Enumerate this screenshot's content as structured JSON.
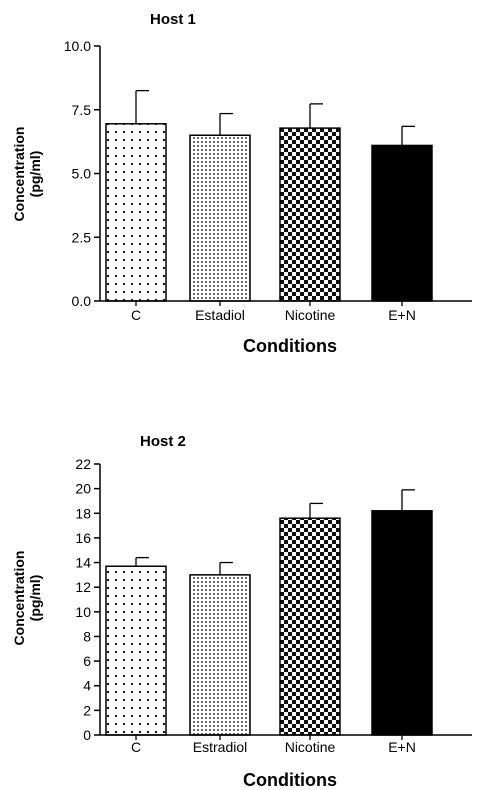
{
  "chart_data": [
    {
      "type": "bar",
      "title": "Host 1",
      "categories": [
        "C",
        "Estadiol",
        "Nicotine",
        "E+N"
      ],
      "values": [
        6.95,
        6.5,
        6.78,
        6.1
      ],
      "error": [
        1.3,
        0.85,
        0.95,
        0.75
      ],
      "xlabel": "Conditions",
      "ylabel_line1": "Concentration",
      "ylabel_line2": "(pg/ml)",
      "ylim": [
        0,
        10
      ],
      "yticks": [
        0,
        2.5,
        5,
        7.5,
        10
      ],
      "ytick_labels": [
        "0.0",
        "2.5",
        "5.0",
        "7.5",
        "10.0"
      ],
      "patterns": [
        "sparse-dots",
        "dense-dots",
        "checker",
        "solid"
      ],
      "grid": false,
      "legend": "none"
    },
    {
      "type": "bar",
      "title": "Host 2",
      "categories": [
        "C",
        "Estradiol",
        "Nicotine",
        "E+N"
      ],
      "values": [
        13.7,
        13.0,
        17.6,
        18.2
      ],
      "error": [
        0.7,
        1.0,
        1.2,
        1.7
      ],
      "xlabel": "Conditions",
      "ylabel_line1": "Concentration",
      "ylabel_line2": "(pg/ml)",
      "ylim": [
        0,
        22
      ],
      "yticks": [
        0,
        2,
        4,
        6,
        8,
        10,
        12,
        14,
        16,
        18,
        20,
        22
      ],
      "ytick_labels": [
        "0",
        "2",
        "4",
        "6",
        "8",
        "10",
        "12",
        "14",
        "16",
        "18",
        "20",
        "22"
      ],
      "patterns": [
        "sparse-dots",
        "dense-dots",
        "checker",
        "solid"
      ],
      "grid": false,
      "legend": "none"
    }
  ]
}
